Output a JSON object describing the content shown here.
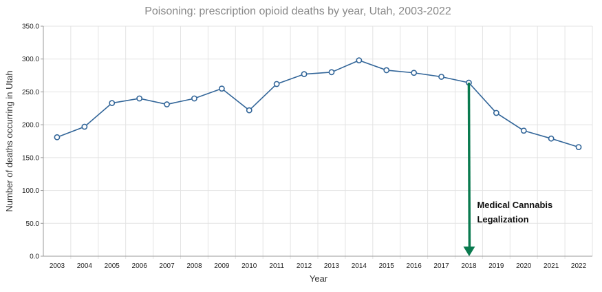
{
  "chart_data": {
    "type": "line",
    "title": "Poisoning: prescription opioid deaths by year, Utah, 2003-2022",
    "xlabel": "Year",
    "ylabel": "Number of deaths occurring in Utah",
    "ylim": [
      0,
      350
    ],
    "yticks": [
      "0.0",
      "50.0",
      "100.0",
      "150.0",
      "200.0",
      "250.0",
      "300.0",
      "350.0"
    ],
    "grid": true,
    "categories": [
      "2003",
      "2004",
      "2005",
      "2006",
      "2007",
      "2008",
      "2009",
      "2010",
      "2011",
      "2012",
      "2013",
      "2014",
      "2015",
      "2016",
      "2017",
      "2018",
      "2019",
      "2020",
      "2021",
      "2022"
    ],
    "series": [
      {
        "values": [
          181,
          197,
          233,
          240,
          231,
          240,
          255,
          222,
          262,
          277,
          280,
          298,
          283,
          279,
          273,
          264,
          218,
          191,
          179,
          166
        ],
        "color": "#336699"
      }
    ],
    "annotation": {
      "lines": [
        "Medical Cannabis",
        "Legalization"
      ],
      "at": "2018",
      "color": "#0a7a4f"
    }
  }
}
